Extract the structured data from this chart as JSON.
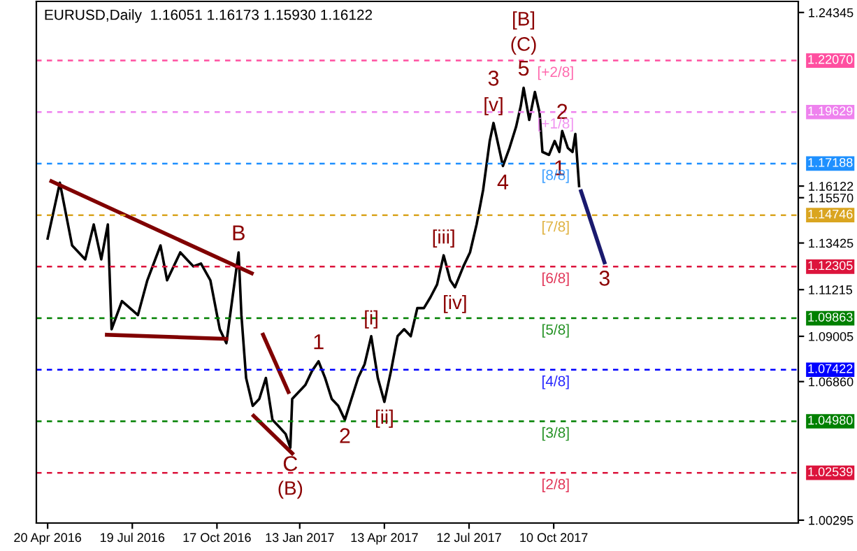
{
  "chart_data": {
    "type": "line",
    "title": "EURUSD,Daily  1.16051 1.16173 1.15930 1.16122",
    "series": [
      {
        "color": "#000000",
        "x": [
          "2016-04-20",
          "2016-05-03",
          "2016-05-16",
          "2016-05-30",
          "2016-06-08",
          "2016-06-16",
          "2016-06-23",
          "2016-06-27",
          "2016-07-08",
          "2016-07-25",
          "2016-08-04",
          "2016-08-18",
          "2016-08-25",
          "2016-09-08",
          "2016-09-22",
          "2016-09-30",
          "2016-10-10",
          "2016-10-20",
          "2016-10-27",
          "2016-11-09",
          "2016-11-12",
          "2016-11-17",
          "2016-11-24",
          "2016-12-01",
          "2016-12-08",
          "2016-12-15",
          "2016-12-22",
          "2016-12-29",
          "2017-01-03",
          "2017-01-05",
          "2017-01-12",
          "2017-01-19",
          "2017-01-26",
          "2017-02-02",
          "2017-02-09",
          "2017-02-16",
          "2017-02-23",
          "2017-03-02",
          "2017-03-09",
          "2017-03-16",
          "2017-03-23",
          "2017-03-30",
          "2017-04-06",
          "2017-04-13",
          "2017-04-20",
          "2017-04-27",
          "2017-05-04",
          "2017-05-11",
          "2017-05-18",
          "2017-05-25",
          "2017-06-01",
          "2017-06-08",
          "2017-06-15",
          "2017-06-22",
          "2017-06-27",
          "2017-07-06",
          "2017-07-13",
          "2017-07-20",
          "2017-07-27",
          "2017-08-03",
          "2017-08-07",
          "2017-08-17",
          "2017-08-24",
          "2017-08-31",
          "2017-09-05",
          "2017-09-08",
          "2017-09-14",
          "2017-09-20",
          "2017-09-25",
          "2017-09-28",
          "2017-10-05",
          "2017-10-11",
          "2017-10-16",
          "2017-10-19",
          "2017-10-25",
          "2017-10-30",
          "2017-11-02",
          "2017-11-06"
        ],
        "values": [
          1.1364,
          1.1628,
          1.1331,
          1.1265,
          1.143,
          1.1265,
          1.143,
          1.0934,
          1.1067,
          1.1001,
          1.1166,
          1.1331,
          1.1166,
          1.1298,
          1.1232,
          1.1245,
          1.1166,
          1.0934,
          1.0868,
          1.1298,
          1.1001,
          1.0703,
          1.0571,
          1.0604,
          1.0703,
          1.0505,
          1.0472,
          1.0438,
          1.0373,
          1.0604,
          1.0637,
          1.067,
          1.0736,
          1.0782,
          1.0703,
          1.0604,
          1.0571,
          1.0505,
          1.0604,
          1.0703,
          1.0769,
          1.0901,
          1.0703,
          1.059,
          1.0736,
          1.0901,
          1.0934,
          1.0901,
          1.1034,
          1.1034,
          1.1086,
          1.1146,
          1.1284,
          1.1166,
          1.1133,
          1.1232,
          1.1298,
          1.143,
          1.1595,
          1.1826,
          1.1911,
          1.1707,
          1.1793,
          1.1893,
          1.1992,
          1.2078,
          1.1926,
          1.2058,
          1.1959,
          1.1774,
          1.176,
          1.1826,
          1.1774,
          1.1873,
          1.1793,
          1.1774,
          1.1859,
          1.1612
        ]
      },
      {
        "color": "#800000",
        "x": [
          "2016-04-24",
          "2016-11-23"
        ],
        "values": [
          1.1635,
          1.1199
        ]
      },
      {
        "color": "#800000",
        "x": [
          "2016-06-22",
          "2016-10-27"
        ],
        "values": [
          1.0908,
          1.0888
        ]
      },
      {
        "color": "#800000",
        "x": [
          "2016-12-05",
          "2017-01-01"
        ],
        "values": [
          1.0908,
          1.0637
        ]
      },
      {
        "color": "#800000",
        "x": [
          "2016-11-25",
          "2017-01-05"
        ],
        "values": [
          1.0524,
          1.0346
        ]
      },
      {
        "color": "#1a1a6e",
        "x": [
          "2017-11-08",
          "2017-12-03"
        ],
        "values": [
          1.1588,
          1.1251
        ]
      }
    ],
    "annotations": [
      {
        "text": "B",
        "x": "2016-11-09",
        "y": 1.1298
      },
      {
        "text": "C",
        "x": "2017-01-03",
        "y": 1.0373
      },
      {
        "text": "(B)",
        "x": "2017-01-03",
        "y": 1.0373
      },
      {
        "text": "1",
        "x": "2017-02-02",
        "y": 1.0782
      },
      {
        "text": "2",
        "x": "2017-03-02",
        "y": 1.0505
      },
      {
        "text": "[i]",
        "x": "2017-03-30",
        "y": 1.0901
      },
      {
        "text": "[ii]",
        "x": "2017-04-13",
        "y": 1.059
      },
      {
        "text": "[iii]",
        "x": "2017-06-15",
        "y": 1.1284
      },
      {
        "text": "[iv]",
        "x": "2017-06-27",
        "y": 1.1133
      },
      {
        "text": "[v]",
        "x": "2017-08-07",
        "y": 1.1911
      },
      {
        "text": "3",
        "x": "2017-08-07",
        "y": 1.1911
      },
      {
        "text": "4",
        "x": "2017-08-17",
        "y": 1.1707
      },
      {
        "text": "5",
        "x": "2017-09-08",
        "y": 1.2078
      },
      {
        "text": "(C)",
        "x": "2017-09-08",
        "y": 1.2078
      },
      {
        "text": "[B]",
        "x": "2017-09-08",
        "y": 1.2078
      },
      {
        "text": "2",
        "x": "2017-10-19",
        "y": 1.1873
      },
      {
        "text": "1",
        "x": "2017-10-16",
        "y": 1.1774
      },
      {
        "text": "3",
        "x": "2017-12-03",
        "y": 1.1251
      },
      {
        "text": "[+2/8]",
        "x": "2017-10-12",
        "y": 1.2207
      },
      {
        "text": "[+1/8]",
        "x": "2017-10-12",
        "y": 1.19629
      },
      {
        "text": "[8/8]",
        "x": "2017-10-12",
        "y": 1.17188
      },
      {
        "text": "[7/8]",
        "x": "2017-10-12",
        "y": 1.14746
      },
      {
        "text": "[6/8]",
        "x": "2017-10-12",
        "y": 1.12305
      },
      {
        "text": "[5/8]",
        "x": "2017-10-12",
        "y": 1.09863
      },
      {
        "text": "[4/8]",
        "x": "2017-10-12",
        "y": 1.07422
      },
      {
        "text": "[3/8]",
        "x": "2017-10-12",
        "y": 1.0498
      },
      {
        "text": "[2/8]",
        "x": "2017-10-12",
        "y": 1.02539
      }
    ],
    "ref_lines": [
      {
        "axis": "y",
        "value": 1.2207,
        "label": "1.22070",
        "color": "#ff4fa0",
        "line_style": "dashed"
      },
      {
        "axis": "y",
        "value": 1.19629,
        "label": "1.19629",
        "color": "#ee82ee",
        "line_style": "dashed"
      },
      {
        "axis": "y",
        "value": 1.17188,
        "label": "1.17188",
        "color": "#1e90ff",
        "line_style": "dashed"
      },
      {
        "axis": "y",
        "value": 1.14746,
        "label": "1.14746",
        "color": "#daa520",
        "line_style": "dashed"
      },
      {
        "axis": "y",
        "value": 1.12305,
        "label": "1.12305",
        "color": "#dc143c",
        "line_style": "dashed"
      },
      {
        "axis": "y",
        "value": 1.09863,
        "label": "1.09863",
        "color": "#008000",
        "line_style": "dashed"
      },
      {
        "axis": "y",
        "value": 1.07422,
        "label": "1.07422",
        "color": "#0000ff",
        "line_style": "dashed"
      },
      {
        "axis": "y",
        "value": 1.0498,
        "label": "1.04980",
        "color": "#008000",
        "line_style": "dashed"
      },
      {
        "axis": "y",
        "value": 1.02539,
        "label": "1.02539",
        "color": "#dc143c",
        "line_style": "dashed"
      }
    ],
    "xlim": [
      "2016-04-08",
      "2018-06-27"
    ],
    "xticks": [
      {
        "value": "2016-04-20",
        "label": "20 Apr 2016"
      },
      {
        "value": "2016-07-19",
        "label": "19 Jul 2016"
      },
      {
        "value": "2016-10-17",
        "label": "17 Oct 2016"
      },
      {
        "value": "2017-01-13",
        "label": "13 Jan 2017"
      },
      {
        "value": "2017-04-13",
        "label": "13 Apr 2017"
      },
      {
        "value": "2017-07-12",
        "label": "12 Jul 2017"
      },
      {
        "value": "2017-10-10",
        "label": "10 Oct 2017"
      }
    ],
    "ylim": [
      1.0016,
      1.2487
    ],
    "yticks": [
      {
        "value": 1.24345,
        "label": "1.24345"
      },
      {
        "value": 1.16122,
        "label": "1.16122"
      },
      {
        "value": 1.1557,
        "label": "1.15570"
      },
      {
        "value": 1.13425,
        "label": "1.13425"
      },
      {
        "value": 1.11215,
        "label": "1.11215"
      },
      {
        "value": 1.09005,
        "label": "1.09005"
      },
      {
        "value": 1.0686,
        "label": "1.06860"
      },
      {
        "value": 1.00295,
        "label": "1.00295"
      }
    ],
    "grid": false,
    "legend": false,
    "marker": "none",
    "line_style": "solid"
  }
}
